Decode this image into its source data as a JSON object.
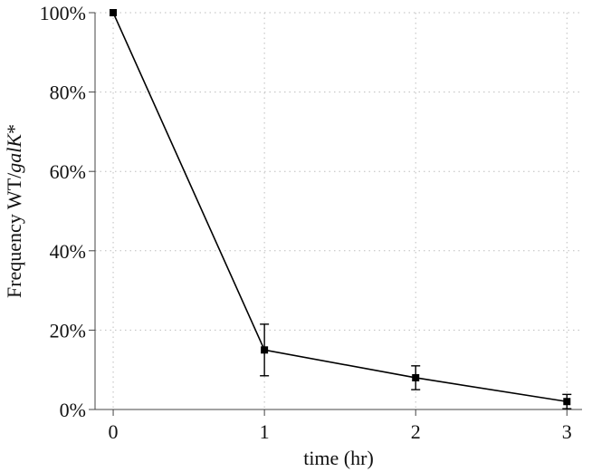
{
  "chart_data": {
    "type": "line",
    "title": "",
    "xlabel": "time (hr)",
    "ylabel_prefix": "Frequency WT/",
    "ylabel_italic": "galK",
    "ylabel_suffix": "*",
    "x": [
      0,
      1,
      2,
      3
    ],
    "x_ticks": [
      "0",
      "1",
      "2",
      "3"
    ],
    "y_ticks": [
      "0%",
      "20%",
      "40%",
      "60%",
      "80%",
      "100%"
    ],
    "xlim": [
      -0.12,
      3.1
    ],
    "ylim": [
      0,
      100
    ],
    "grid": true,
    "legend": "none",
    "series": [
      {
        "values": [
          100,
          15,
          8,
          2
        ],
        "error": [
          0,
          6.5,
          3,
          1.8
        ],
        "color": "#000000",
        "marker": "square"
      }
    ]
  }
}
